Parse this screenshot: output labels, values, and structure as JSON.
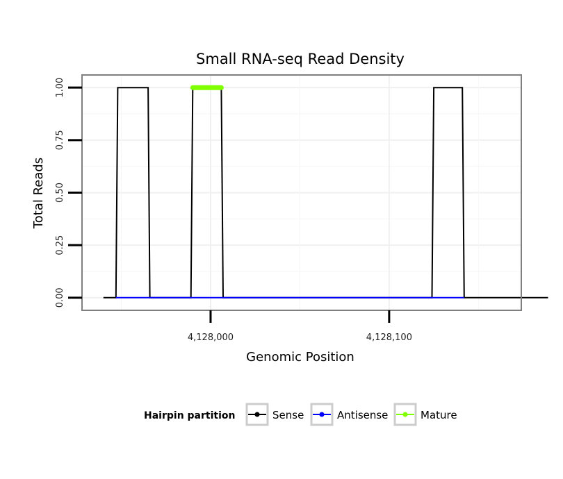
{
  "chart_data": {
    "type": "line",
    "title": "Small RNA-seq Read Density",
    "xlabel": "Genomic Position",
    "ylabel": "Total Reads",
    "xlim": [
      4127928,
      4128174
    ],
    "ylim": [
      -0.06,
      1.06
    ],
    "x_ticks": [
      4128000,
      4128100
    ],
    "x_tick_labels": [
      "4,128,000",
      "4,128,100"
    ],
    "y_ticks": [
      0,
      0.25,
      0.5,
      0.75,
      1
    ],
    "y_tick_labels": [
      "0.00",
      "0.25",
      "0.50",
      "0.75",
      "1.00"
    ],
    "grid": true,
    "legend": {
      "title": "Hairpin partition",
      "position": "bottom",
      "entries": [
        {
          "name": "Sense",
          "color": "#000000"
        },
        {
          "name": "Antisense",
          "color": "#0000ff"
        },
        {
          "name": "Mature",
          "color": "#7fff00"
        }
      ]
    },
    "series": [
      {
        "name": "Sense",
        "color": "#000000",
        "x": [
          4127940,
          4127947,
          4127948,
          4127965,
          4127966,
          4127989,
          4127990,
          4128006,
          4128007,
          4128124,
          4128125,
          4128141,
          4128142,
          4128189
        ],
        "y": [
          0,
          0,
          1,
          1,
          0,
          0,
          1,
          1,
          0,
          0,
          1,
          1,
          0,
          0
        ]
      },
      {
        "name": "Antisense",
        "color": "#0000ff",
        "x": [
          4127947,
          4127966,
          4127989,
          4128007,
          4128124,
          4128142
        ],
        "y": [
          0,
          0,
          0,
          0,
          0,
          0
        ]
      },
      {
        "name": "Mature",
        "color": "#7fff00",
        "x": [
          4127990,
          4128006
        ],
        "y": [
          1,
          1
        ]
      }
    ]
  }
}
